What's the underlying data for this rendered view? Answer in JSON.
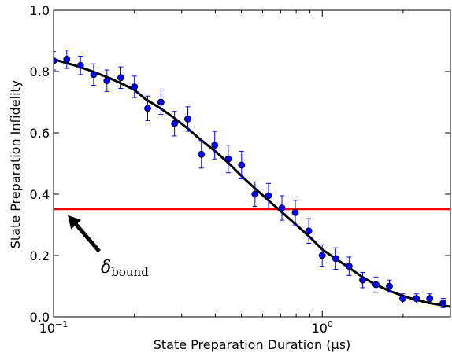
{
  "chart_data": {
    "type": "scatter",
    "xlabel": "State Preparation Duration (μs)",
    "ylabel": "State Preparation Infidelity",
    "xscale": "log",
    "xlim": [
      0.1,
      3.0
    ],
    "ylim": [
      0.0,
      1.0
    ],
    "x_ticks": [
      {
        "value": 0.1,
        "base": "10",
        "exp": "−1"
      },
      {
        "value": 1.0,
        "base": "10",
        "exp": "0"
      }
    ],
    "y_ticks": [
      0.0,
      0.2,
      0.4,
      0.6,
      0.8,
      1.0
    ],
    "y_tick_labels": [
      "0.0",
      "0.2",
      "0.4",
      "0.6",
      "0.8",
      "1.0"
    ],
    "grid": false,
    "series": [
      {
        "style": "points with error bars",
        "color": "#0000ff",
        "points": [
          {
            "x": 0.1,
            "y": 0.835,
            "err": 0.03
          },
          {
            "x": 0.112,
            "y": 0.84,
            "err": 0.03
          },
          {
            "x": 0.126,
            "y": 0.82,
            "err": 0.03
          },
          {
            "x": 0.141,
            "y": 0.79,
            "err": 0.035
          },
          {
            "x": 0.158,
            "y": 0.77,
            "err": 0.035
          },
          {
            "x": 0.178,
            "y": 0.78,
            "err": 0.035
          },
          {
            "x": 0.2,
            "y": 0.75,
            "err": 0.035
          },
          {
            "x": 0.224,
            "y": 0.68,
            "err": 0.04
          },
          {
            "x": 0.251,
            "y": 0.7,
            "err": 0.04
          },
          {
            "x": 0.282,
            "y": 0.63,
            "err": 0.04
          },
          {
            "x": 0.316,
            "y": 0.645,
            "err": 0.04
          },
          {
            "x": 0.355,
            "y": 0.53,
            "err": 0.045
          },
          {
            "x": 0.398,
            "y": 0.56,
            "err": 0.045
          },
          {
            "x": 0.447,
            "y": 0.515,
            "err": 0.045
          },
          {
            "x": 0.501,
            "y": 0.495,
            "err": 0.045
          },
          {
            "x": 0.562,
            "y": 0.4,
            "err": 0.04
          },
          {
            "x": 0.631,
            "y": 0.395,
            "err": 0.04
          },
          {
            "x": 0.708,
            "y": 0.355,
            "err": 0.04
          },
          {
            "x": 0.794,
            "y": 0.34,
            "err": 0.04
          },
          {
            "x": 0.891,
            "y": 0.28,
            "err": 0.04
          },
          {
            "x": 1.0,
            "y": 0.2,
            "err": 0.035
          },
          {
            "x": 1.122,
            "y": 0.19,
            "err": 0.035
          },
          {
            "x": 1.259,
            "y": 0.165,
            "err": 0.03
          },
          {
            "x": 1.413,
            "y": 0.12,
            "err": 0.025
          },
          {
            "x": 1.585,
            "y": 0.105,
            "err": 0.025
          },
          {
            "x": 1.778,
            "y": 0.1,
            "err": 0.02
          },
          {
            "x": 1.995,
            "y": 0.06,
            "err": 0.015
          },
          {
            "x": 2.239,
            "y": 0.06,
            "err": 0.015
          },
          {
            "x": 2.512,
            "y": 0.06,
            "err": 0.015
          },
          {
            "x": 2.818,
            "y": 0.045,
            "err": 0.015
          }
        ]
      },
      {
        "style": "line",
        "color": "#000000",
        "points": [
          {
            "x": 0.1,
            "y": 0.84
          },
          {
            "x": 0.12,
            "y": 0.82
          },
          {
            "x": 0.14,
            "y": 0.8
          },
          {
            "x": 0.16,
            "y": 0.78
          },
          {
            "x": 0.18,
            "y": 0.76
          },
          {
            "x": 0.2,
            "y": 0.74
          },
          {
            "x": 0.22,
            "y": 0.71
          },
          {
            "x": 0.25,
            "y": 0.68
          },
          {
            "x": 0.28,
            "y": 0.65
          },
          {
            "x": 0.32,
            "y": 0.61
          },
          {
            "x": 0.35,
            "y": 0.58
          },
          {
            "x": 0.4,
            "y": 0.54
          },
          {
            "x": 0.45,
            "y": 0.5
          },
          {
            "x": 0.5,
            "y": 0.46
          },
          {
            "x": 0.56,
            "y": 0.42
          },
          {
            "x": 0.63,
            "y": 0.38
          },
          {
            "x": 0.71,
            "y": 0.34
          },
          {
            "x": 0.8,
            "y": 0.3
          },
          {
            "x": 0.9,
            "y": 0.26
          },
          {
            "x": 1.0,
            "y": 0.22
          },
          {
            "x": 1.12,
            "y": 0.19
          },
          {
            "x": 1.26,
            "y": 0.16
          },
          {
            "x": 1.41,
            "y": 0.13
          },
          {
            "x": 1.58,
            "y": 0.105
          },
          {
            "x": 1.78,
            "y": 0.085
          },
          {
            "x": 2.0,
            "y": 0.068
          },
          {
            "x": 2.24,
            "y": 0.055
          },
          {
            "x": 2.51,
            "y": 0.045
          },
          {
            "x": 2.82,
            "y": 0.037
          },
          {
            "x": 3.0,
            "y": 0.033
          }
        ]
      },
      {
        "style": "horizontal line",
        "color": "#ff0000",
        "y": 0.352
      }
    ],
    "annotations": [
      {
        "symbol": "δ",
        "subscript": "bound",
        "arrow_target": {
          "x": 0.113,
          "y": 0.352
        }
      }
    ]
  }
}
